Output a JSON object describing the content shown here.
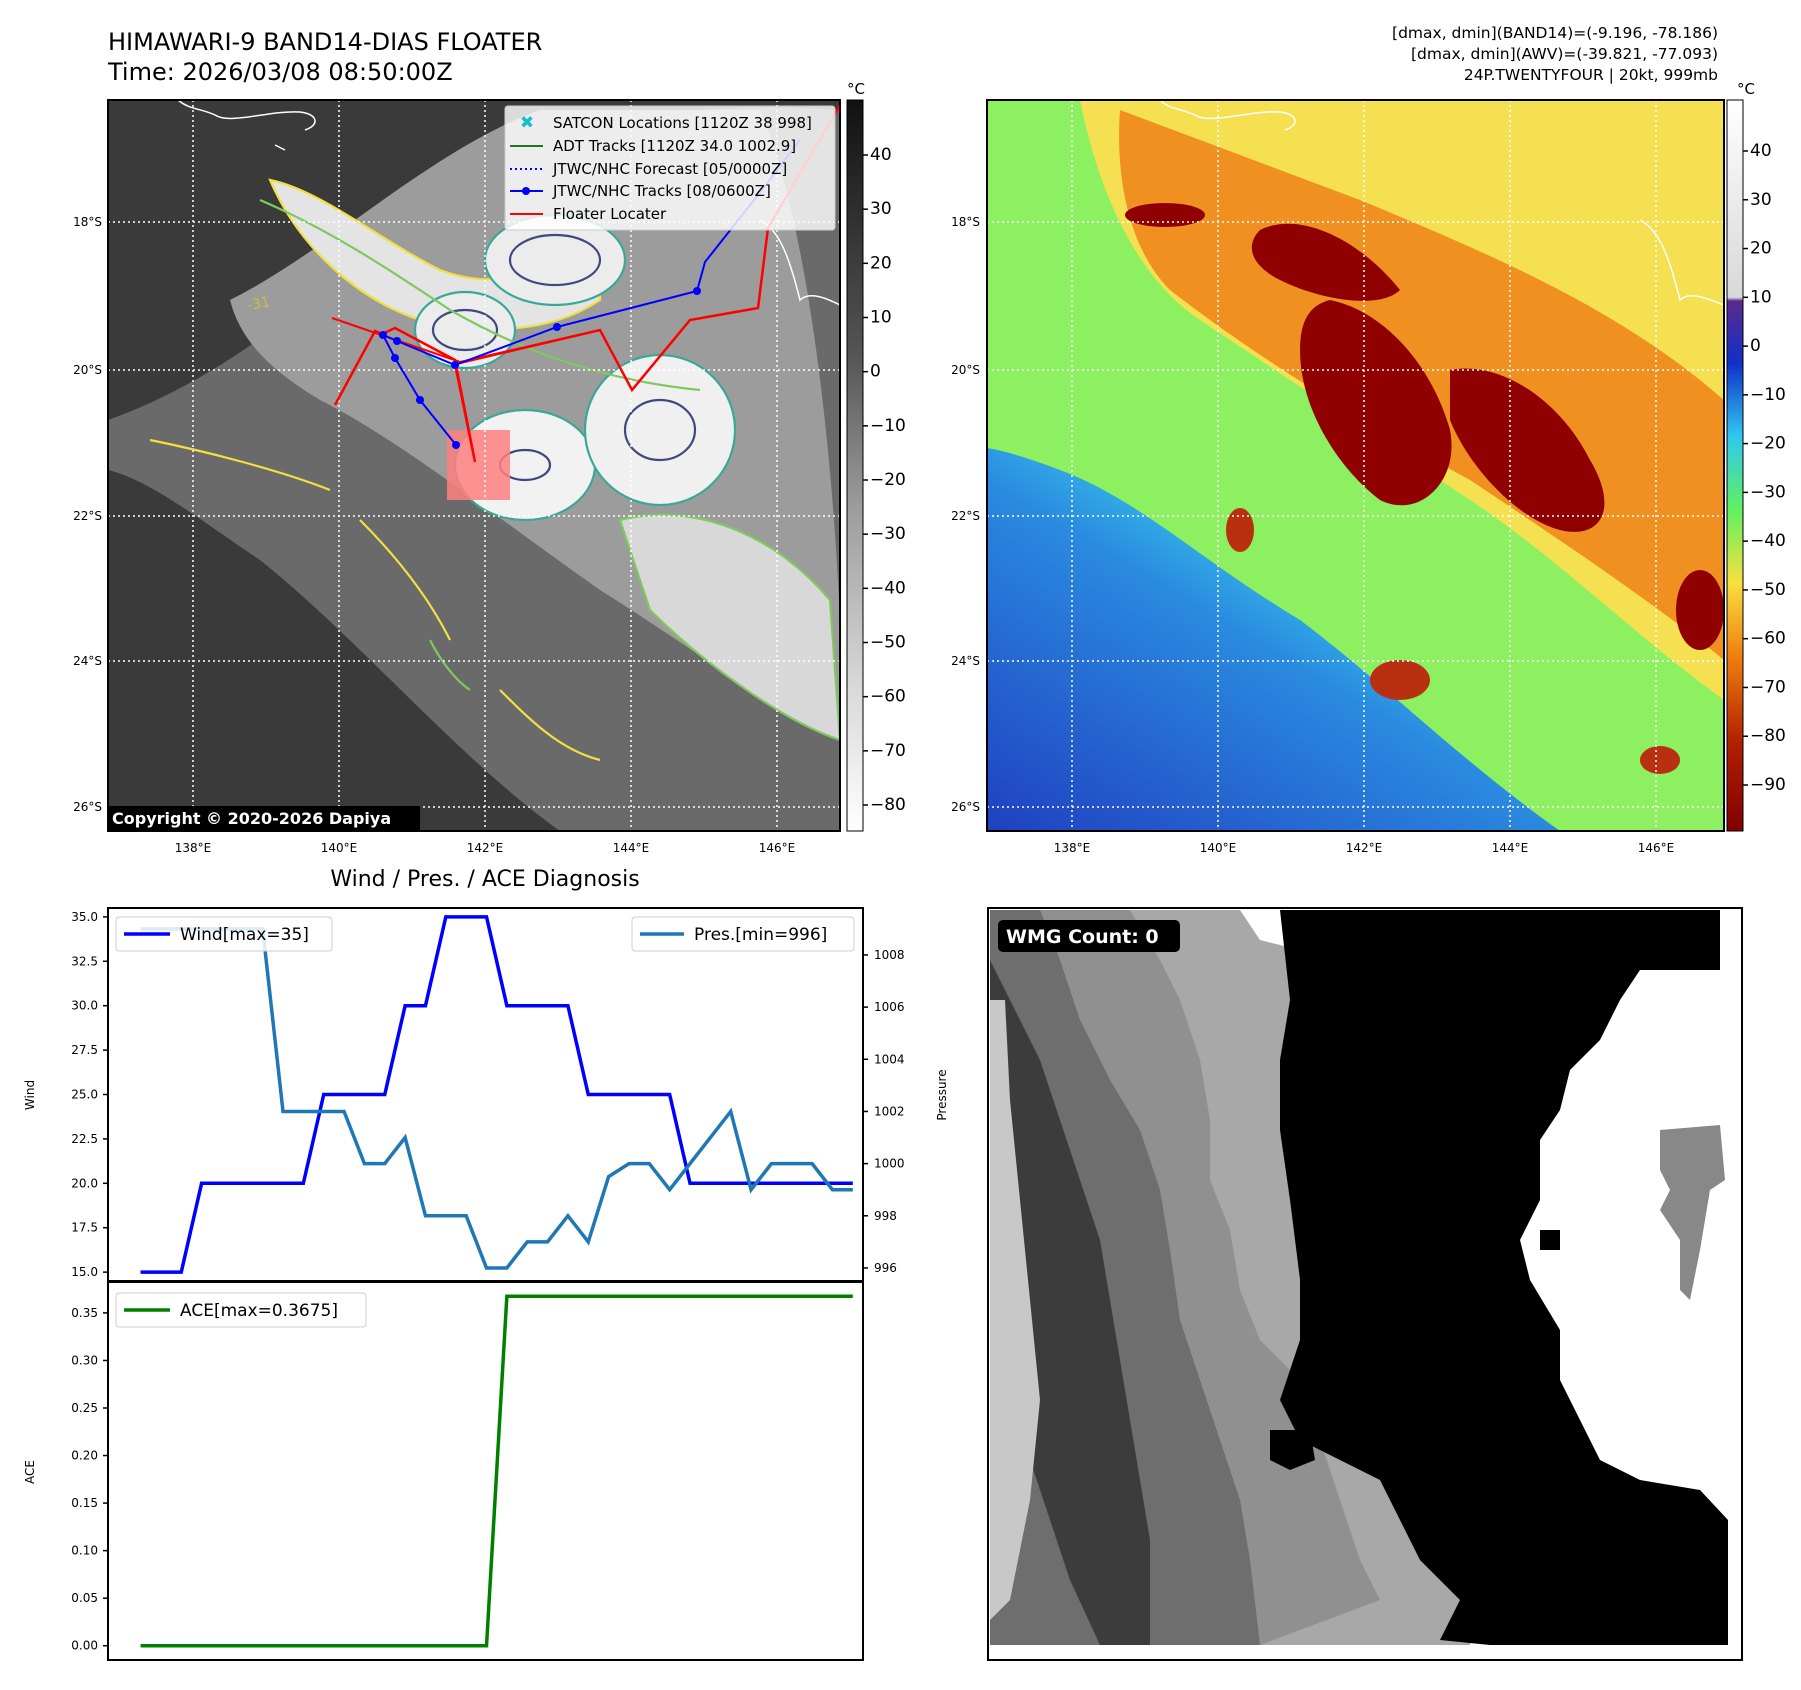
{
  "header": {
    "title_line1": "HIMAWARI-9 BAND14-DIAS FLOATER",
    "title_line2": "Time: 2026/03/08 08:50:00Z",
    "right_line1": "[dmax, dmin](BAND14)=(-9.196, -78.186)",
    "right_line2": "[dmax, dmin](AWV)=(-39.821, -77.093)",
    "right_line3": "24P.TWENTYFOUR | 20kt, 999mb"
  },
  "map_axes": {
    "lat_ticks": [
      "18°S",
      "20°S",
      "22°S",
      "24°S",
      "26°S"
    ],
    "lon_ticks": [
      "138°E",
      "140°E",
      "142°E",
      "144°E",
      "146°E"
    ]
  },
  "ir_panel": {
    "legend": [
      {
        "label": "SATCON Locations [1120Z 38 998]",
        "color": "#17becf",
        "style": "x"
      },
      {
        "label": "ADT Tracks [1120Z 34.0 1002.9]",
        "color": "#1a7a1a",
        "style": "line"
      },
      {
        "label": "JTWC/NHC Forecast [05/0000Z]",
        "color": "#0000ff",
        "style": "dotted"
      },
      {
        "label": "JTWC/NHC Tracks [08/0600Z]",
        "color": "#0000ff",
        "style": "line-dot"
      },
      {
        "label": "Floater Locater",
        "color": "#ff0000",
        "style": "line"
      }
    ],
    "copyright": "Copyright © 2020-2026 Dapiya",
    "contour_label": "-31",
    "colorbar_unit": "°C",
    "colorbar_ticks": [
      "40",
      "30",
      "20",
      "10",
      "0",
      "−10",
      "−20",
      "−30",
      "−40",
      "−50",
      "−60",
      "−70",
      "−80"
    ]
  },
  "color_panel": {
    "colorbar_unit": "°C",
    "colorbar_ticks": [
      "40",
      "30",
      "20",
      "10",
      "0",
      "−10",
      "−20",
      "−30",
      "−40",
      "−50",
      "−60",
      "−70",
      "−80",
      "−90"
    ]
  },
  "wmg_panel": {
    "label": "WMG Count: 0"
  },
  "diag": {
    "title": "Wind / Pres. / ACE Diagnosis",
    "wind_ylabel": "Wind",
    "pres_ylabel": "Pressure",
    "ace_ylabel": "ACE",
    "wind_legend": "Wind[max=35]",
    "pres_legend": "Pres.[min=996]",
    "ace_legend": "ACE[max=0.3675]",
    "wind_ticks": [
      "35.0",
      "32.5",
      "30.0",
      "27.5",
      "25.0",
      "22.5",
      "20.0",
      "17.5",
      "15.0"
    ],
    "pres_ticks": [
      "1008",
      "1006",
      "1004",
      "1002",
      "1000",
      "998",
      "996"
    ],
    "ace_ticks": [
      "0.35",
      "0.30",
      "0.25",
      "0.20",
      "0.15",
      "0.10",
      "0.05",
      "0.00"
    ]
  },
  "chart_data": [
    {
      "type": "line",
      "title": "Wind / Pres. / ACE Diagnosis",
      "x": [
        0,
        1,
        2,
        3,
        4,
        5,
        6,
        7,
        8,
        9,
        10,
        11,
        12,
        13,
        14,
        15,
        16,
        17,
        18,
        19,
        20,
        21,
        22,
        23,
        24,
        25,
        26,
        27,
        28,
        29,
        30,
        31,
        32,
        33,
        34,
        35
      ],
      "series": [
        {
          "name": "Wind[max=35]",
          "color": "#0000ff",
          "axis": "left",
          "values": [
            15,
            15,
            15,
            20,
            20,
            20,
            20,
            20,
            20,
            25,
            25,
            25,
            25,
            30,
            30,
            35,
            35,
            35,
            30,
            30,
            30,
            30,
            25,
            25,
            25,
            25,
            25,
            20,
            20,
            20,
            20,
            20,
            20,
            20,
            20,
            20
          ]
        },
        {
          "name": "Pres.[min=996]",
          "color": "#1f77b4",
          "axis": "right",
          "values": [
            1009,
            1009,
            1009,
            1009,
            1009,
            1009,
            1009,
            1002,
            1002,
            1002,
            1002,
            1000,
            1000,
            1001,
            998,
            998,
            998,
            996,
            996,
            997,
            997,
            998,
            997,
            999.5,
            1000,
            1000,
            999,
            1000,
            1001,
            1002,
            999,
            1000,
            1000,
            1000,
            999,
            999
          ]
        }
      ],
      "ylabel": "Wind",
      "ylim": [
        14.5,
        35.5
      ],
      "ylabel_right": "Pressure",
      "ylim_right": [
        995.5,
        1009.8
      ],
      "legend": [
        "top-left",
        "top-right"
      ]
    },
    {
      "type": "line",
      "x": [
        0,
        1,
        2,
        3,
        4,
        5,
        6,
        7,
        8,
        9,
        10,
        11,
        12,
        13,
        14,
        15,
        16,
        17,
        18,
        19,
        20,
        21,
        22,
        23,
        24,
        25,
        26,
        27,
        28,
        29,
        30,
        31,
        32,
        33,
        34,
        35
      ],
      "series": [
        {
          "name": "ACE[max=0.3675]",
          "color": "#008000",
          "values": [
            0,
            0,
            0,
            0,
            0,
            0,
            0,
            0,
            0,
            0,
            0,
            0,
            0,
            0,
            0,
            0,
            0,
            0,
            0.3675,
            0.3675,
            0.3675,
            0.3675,
            0.3675,
            0.3675,
            0.3675,
            0.3675,
            0.3675,
            0.3675,
            0.3675,
            0.3675,
            0.3675,
            0.3675,
            0.3675,
            0.3675,
            0.3675,
            0.3675
          ]
        }
      ],
      "ylabel": "ACE",
      "ylim": [
        -0.015,
        0.3825
      ],
      "legend": "top-left"
    }
  ]
}
